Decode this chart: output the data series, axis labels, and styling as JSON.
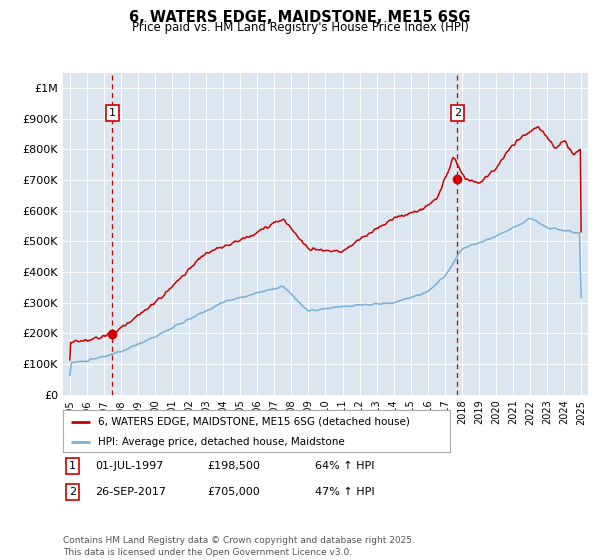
{
  "title": "6, WATERS EDGE, MAIDSTONE, ME15 6SG",
  "subtitle": "Price paid vs. HM Land Registry's House Price Index (HPI)",
  "plot_bg_color": "#dce6f1",
  "red_line_color": "#cc0000",
  "blue_line_color": "#7bafd4",
  "marker_color": "#cc0000",
  "sale1_x": 1997.5,
  "sale1_y": 198500,
  "sale2_x": 2017.73,
  "sale2_y": 705000,
  "ylabel_texts": [
    "£0",
    "£100K",
    "£200K",
    "£300K",
    "£400K",
    "£500K",
    "£600K",
    "£700K",
    "£800K",
    "£900K",
    "£1M"
  ],
  "yticks": [
    0,
    100000,
    200000,
    300000,
    400000,
    500000,
    600000,
    700000,
    800000,
    900000,
    1000000
  ],
  "xlim": [
    1994.6,
    2025.4
  ],
  "ylim": [
    0,
    1050000
  ],
  "legend_label_red": "6, WATERS EDGE, MAIDSTONE, ME15 6SG (detached house)",
  "legend_label_blue": "HPI: Average price, detached house, Maidstone",
  "footer": "Contains HM Land Registry data © Crown copyright and database right 2025.\nThis data is licensed under the Open Government Licence v3.0."
}
